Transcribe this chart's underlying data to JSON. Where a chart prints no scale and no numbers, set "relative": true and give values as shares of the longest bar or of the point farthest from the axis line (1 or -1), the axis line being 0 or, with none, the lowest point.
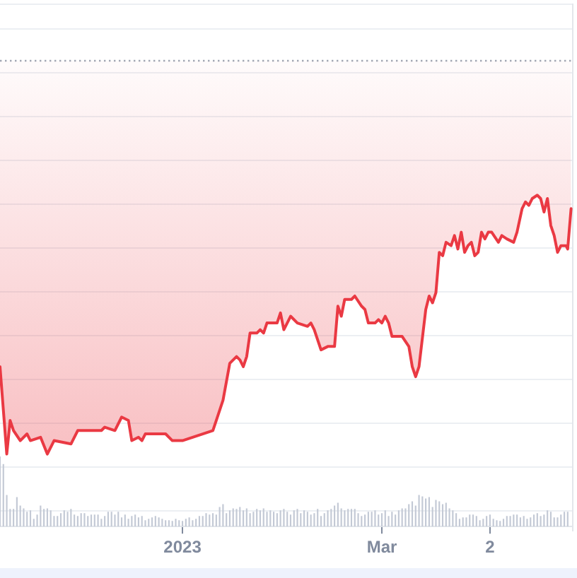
{
  "chart_data": [
    {
      "type": "area",
      "relative": true,
      "color": "#ea3943",
      "xlim": [
        "2022-11-08",
        "2023-04-26T12:00"
      ],
      "grid": "y",
      "tick_labels": false,
      "ref_lines": [
        {
          "axis": "y",
          "value": 1.4,
          "color": "#a1a7b3",
          "line_style": "dotted"
        }
      ],
      "x": [
        "2022-11-08",
        "2022-11-09",
        "2022-11-10",
        "2022-11-11",
        "2022-11-12",
        "2022-11-14",
        "2022-11-16",
        "2022-11-17",
        "2022-11-20",
        "2022-11-22",
        "2022-11-24",
        "2022-11-29",
        "2022-12-01",
        "2022-12-03",
        "2022-12-05",
        "2022-12-08",
        "2022-12-09",
        "2022-12-12",
        "2022-12-14",
        "2022-12-16",
        "2022-12-17",
        "2022-12-19",
        "2022-12-20",
        "2022-12-21",
        "2022-12-27",
        "2022-12-29",
        "2023-01-01",
        "2023-01-04",
        "2023-01-07",
        "2023-01-10",
        "2023-01-11",
        "2023-01-13",
        "2023-01-15",
        "2023-01-16",
        "2023-01-17",
        "2023-01-18",
        "2023-01-19",
        "2023-01-20",
        "2023-01-21",
        "2023-01-23",
        "2023-01-24",
        "2023-01-25",
        "2023-01-26",
        "2023-01-29",
        "2023-01-30",
        "2023-01-31",
        "2023-02-02",
        "2023-02-04",
        "2023-02-07",
        "2023-02-08",
        "2023-02-09",
        "2023-02-11",
        "2023-02-13",
        "2023-02-15",
        "2023-02-16",
        "2023-02-17",
        "2023-02-18",
        "2023-02-20",
        "2023-02-21",
        "2023-02-23",
        "2023-02-24",
        "2023-02-25",
        "2023-02-27",
        "2023-02-28",
        "2023-03-01",
        "2023-03-02",
        "2023-03-03",
        "2023-03-04",
        "2023-03-07",
        "2023-03-09",
        "2023-03-10",
        "2023-03-11",
        "2023-03-12",
        "2023-03-14",
        "2023-03-15",
        "2023-03-16",
        "2023-03-17",
        "2023-03-18",
        "2023-03-19",
        "2023-03-20",
        "2023-03-21T12:00",
        "2023-03-22T12:00",
        "2023-03-23T12:00",
        "2023-03-24T12:00",
        "2023-03-25T12:00",
        "2023-03-26T12:00",
        "2023-03-27T12:00",
        "2023-03-28T12:00",
        "2023-03-29T12:00",
        "2023-03-30T12:00",
        "2023-03-31T12:00",
        "2023-04-01T12:00",
        "2023-04-02T12:00",
        "2023-04-04T12:00",
        "2023-04-05T12:00",
        "2023-04-07",
        "2023-04-09",
        "2023-04-10",
        "2023-04-11T12:00",
        "2023-04-12T12:00",
        "2023-04-13T12:00",
        "2023-04-14T12:00",
        "2023-04-16",
        "2023-04-17",
        "2023-04-18",
        "2023-04-19",
        "2023-04-20",
        "2023-04-21",
        "2023-04-22",
        "2023-04-23",
        "2023-04-24T12:00",
        "2023-04-25",
        "2023-04-26"
      ],
      "values": [
        0.49,
        0.36,
        0.23,
        0.33,
        0.3,
        0.27,
        0.29,
        0.27,
        0.28,
        0.23,
        0.27,
        0.26,
        0.3,
        0.3,
        0.3,
        0.3,
        0.31,
        0.3,
        0.34,
        0.33,
        0.27,
        0.28,
        0.27,
        0.29,
        0.29,
        0.27,
        0.27,
        0.28,
        0.29,
        0.3,
        0.33,
        0.39,
        0.5,
        0.51,
        0.52,
        0.51,
        0.49,
        0.52,
        0.59,
        0.59,
        0.6,
        0.59,
        0.62,
        0.62,
        0.65,
        0.6,
        0.64,
        0.62,
        0.61,
        0.62,
        0.6,
        0.54,
        0.55,
        0.55,
        0.67,
        0.64,
        0.69,
        0.69,
        0.7,
        0.67,
        0.66,
        0.62,
        0.62,
        0.63,
        0.62,
        0.64,
        0.62,
        0.58,
        0.58,
        0.55,
        0.49,
        0.46,
        0.49,
        0.66,
        0.7,
        0.68,
        0.71,
        0.83,
        0.82,
        0.86,
        0.85,
        0.88,
        0.84,
        0.89,
        0.83,
        0.85,
        0.86,
        0.82,
        0.83,
        0.89,
        0.87,
        0.89,
        0.89,
        0.86,
        0.88,
        0.87,
        0.86,
        0.89,
        0.96,
        0.98,
        0.97,
        0.99,
        1,
        0.99,
        0.95,
        0.99,
        0.91,
        0.88,
        0.83,
        0.85,
        0.85,
        0.84,
        0.96
      ]
    },
    {
      "type": "bar",
      "relative": true,
      "color": "#c3c9d5",
      "xlim": [
        "2022-11-08",
        "2023-04-26T12:00"
      ],
      "tick_labels": "x",
      "xticks": [
        {
          "value": "2023-01-01",
          "label": "2023"
        },
        {
          "value": "2023-03-01",
          "label": "Mar"
        },
        {
          "value": "2023-04-02",
          "label": "2"
        }
      ],
      "x": [
        "2022-11-08",
        "2022-11-09",
        "2022-11-10",
        "2022-11-11",
        "2022-11-12",
        "2022-11-13",
        "2022-11-14",
        "2022-11-15",
        "2022-11-16",
        "2022-11-17",
        "2022-11-18",
        "2022-11-19",
        "2022-11-20",
        "2022-11-21",
        "2022-11-22",
        "2022-11-23",
        "2022-11-24",
        "2022-11-25",
        "2022-11-26",
        "2022-11-27",
        "2022-11-28",
        "2022-11-29",
        "2022-11-30",
        "2022-12-01",
        "2022-12-02",
        "2022-12-03",
        "2022-12-04",
        "2022-12-05",
        "2022-12-06",
        "2022-12-07",
        "2022-12-08",
        "2022-12-09",
        "2022-12-10",
        "2022-12-11",
        "2022-12-12",
        "2022-12-13",
        "2022-12-14",
        "2022-12-15",
        "2022-12-16",
        "2022-12-17",
        "2022-12-18",
        "2022-12-19",
        "2022-12-20",
        "2022-12-21",
        "2022-12-22",
        "2022-12-23",
        "2022-12-24",
        "2022-12-25",
        "2022-12-26",
        "2022-12-27",
        "2022-12-28",
        "2022-12-29",
        "2022-12-30",
        "2022-12-31",
        "2023-01-01",
        "2023-01-02",
        "2023-01-03",
        "2023-01-04",
        "2023-01-05",
        "2023-01-06",
        "2023-01-07",
        "2023-01-08",
        "2023-01-09",
        "2023-01-10",
        "2023-01-11",
        "2023-01-12",
        "2023-01-13",
        "2023-01-14",
        "2023-01-15",
        "2023-01-16",
        "2023-01-17",
        "2023-01-18",
        "2023-01-19",
        "2023-01-20",
        "2023-01-21",
        "2023-01-22",
        "2023-01-23",
        "2023-01-24",
        "2023-01-25",
        "2023-01-26",
        "2023-01-27",
        "2023-01-28",
        "2023-01-29",
        "2023-01-30",
        "2023-01-31",
        "2023-02-01",
        "2023-02-02",
        "2023-02-03",
        "2023-02-04",
        "2023-02-05",
        "2023-02-06",
        "2023-02-07",
        "2023-02-08",
        "2023-02-09",
        "2023-02-10",
        "2023-02-11",
        "2023-02-12",
        "2023-02-13",
        "2023-02-14",
        "2023-02-15",
        "2023-02-16",
        "2023-02-17",
        "2023-02-18",
        "2023-02-19",
        "2023-02-20",
        "2023-02-21",
        "2023-02-22",
        "2023-02-23",
        "2023-02-24",
        "2023-02-25",
        "2023-02-26",
        "2023-02-27",
        "2023-02-28",
        "2023-03-01",
        "2023-03-02",
        "2023-03-03",
        "2023-03-04",
        "2023-03-05",
        "2023-03-06",
        "2023-03-07",
        "2023-03-08",
        "2023-03-09",
        "2023-03-10",
        "2023-03-11",
        "2023-03-12",
        "2023-03-13",
        "2023-03-14",
        "2023-03-15",
        "2023-03-16",
        "2023-03-17",
        "2023-03-18",
        "2023-03-19",
        "2023-03-20",
        "2023-03-21",
        "2023-03-22",
        "2023-03-23",
        "2023-03-24",
        "2023-03-25",
        "2023-03-26",
        "2023-03-27",
        "2023-03-28",
        "2023-03-29",
        "2023-03-30",
        "2023-03-31",
        "2023-04-01",
        "2023-04-02",
        "2023-04-03",
        "2023-04-04",
        "2023-04-05",
        "2023-04-06",
        "2023-04-07",
        "2023-04-08",
        "2023-04-09",
        "2023-04-10",
        "2023-04-11",
        "2023-04-12",
        "2023-04-13",
        "2023-04-14",
        "2023-04-15",
        "2023-04-16",
        "2023-04-17",
        "2023-04-18",
        "2023-04-19",
        "2023-04-20",
        "2023-04-21",
        "2023-04-22",
        "2023-04-23",
        "2023-04-24",
        "2023-04-25"
      ],
      "values": [
        1,
        0.89,
        0.45,
        0.25,
        0.25,
        0.42,
        0.3,
        0.26,
        0.21,
        0.23,
        0.11,
        0.17,
        0.3,
        0.25,
        0.26,
        0.23,
        0.15,
        0.15,
        0.19,
        0.23,
        0.21,
        0.25,
        0.17,
        0.15,
        0.19,
        0.19,
        0.15,
        0.17,
        0.17,
        0.17,
        0.11,
        0.15,
        0.21,
        0.21,
        0.17,
        0.21,
        0.13,
        0.17,
        0.11,
        0.15,
        0.17,
        0.13,
        0.15,
        0.09,
        0.11,
        0.13,
        0.15,
        0.13,
        0.11,
        0.09,
        0.09,
        0.08,
        0.11,
        0.09,
        0.08,
        0.11,
        0.13,
        0.09,
        0.11,
        0.15,
        0.15,
        0.19,
        0.17,
        0.19,
        0.17,
        0.28,
        0.32,
        0.19,
        0.23,
        0.26,
        0.25,
        0.28,
        0.23,
        0.26,
        0.19,
        0.21,
        0.25,
        0.23,
        0.26,
        0.21,
        0.23,
        0.21,
        0.19,
        0.23,
        0.25,
        0.21,
        0.17,
        0.23,
        0.25,
        0.19,
        0.23,
        0.21,
        0.17,
        0.19,
        0.25,
        0.15,
        0.19,
        0.23,
        0.25,
        0.3,
        0.34,
        0.26,
        0.23,
        0.25,
        0.25,
        0.25,
        0.19,
        0.15,
        0.17,
        0.21,
        0.21,
        0.23,
        0.17,
        0.19,
        0.23,
        0.15,
        0.21,
        0.17,
        0.23,
        0.26,
        0.26,
        0.32,
        0.36,
        0.3,
        0.45,
        0.43,
        0.4,
        0.42,
        0.28,
        0.38,
        0.36,
        0.32,
        0.34,
        0.26,
        0.23,
        0.19,
        0.11,
        0.13,
        0.13,
        0.17,
        0.17,
        0.15,
        0.09,
        0.11,
        0.15,
        0.17,
        0.11,
        0.09,
        0.08,
        0.11,
        0.15,
        0.15,
        0.17,
        0.17,
        0.13,
        0.15,
        0.11,
        0.13,
        0.17,
        0.19,
        0.15,
        0.17,
        0.23,
        0.21,
        0.13,
        0.13,
        0.17,
        0.21,
        0.21
      ]
    }
  ]
}
